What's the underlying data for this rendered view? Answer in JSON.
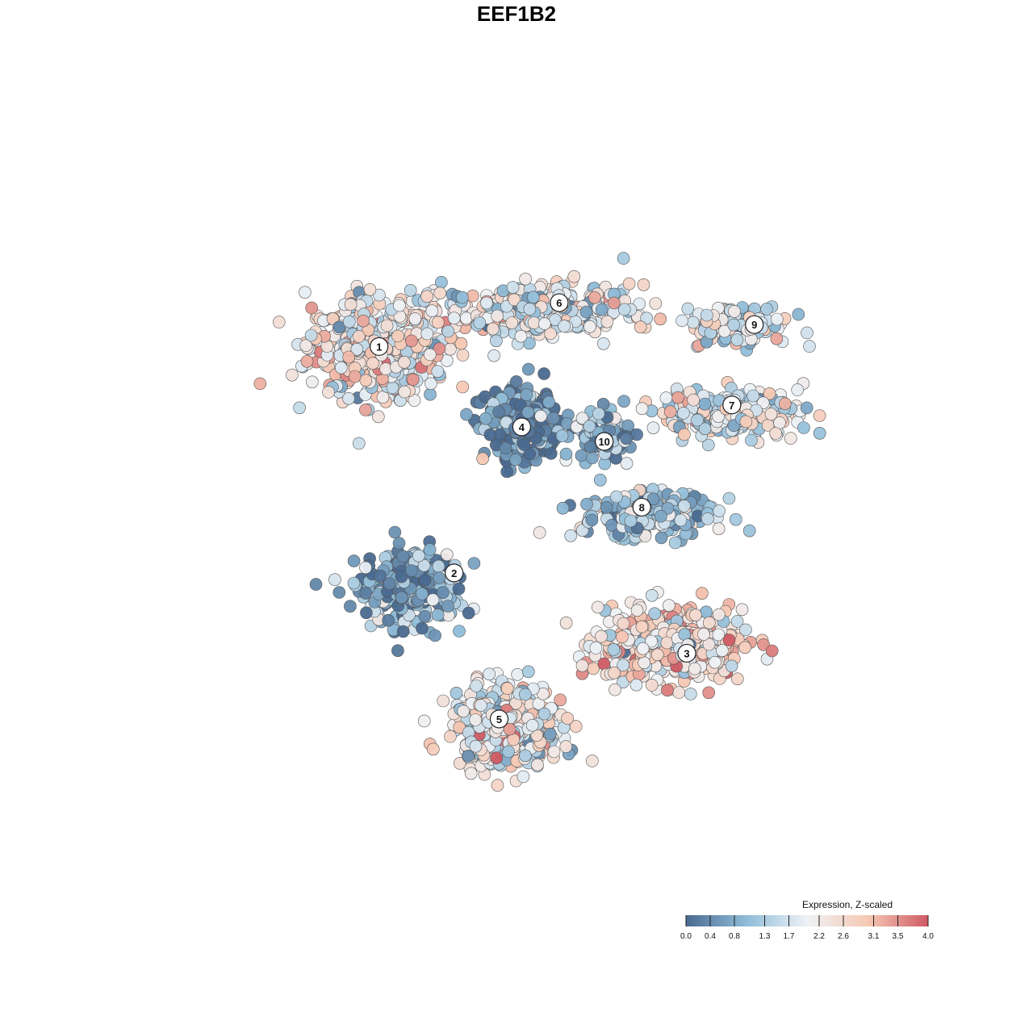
{
  "chart_data": {
    "type": "scatter",
    "title": "EEF1B2",
    "xlabel": "",
    "ylabel": "",
    "grid": false,
    "axes_visible": false,
    "colorbar": {
      "title": "Expression, Z-scaled",
      "range": [
        0,
        4
      ],
      "ticks": [
        0.0,
        0.4,
        0.8,
        1.3,
        1.7,
        2.2,
        2.6,
        3.1,
        3.5,
        4.0
      ],
      "tick_labels": [
        "0.0",
        "0.4",
        "0.8",
        "1.3",
        "1.7",
        "2.2",
        "2.6",
        "3.1",
        "3.5",
        "4.0"
      ],
      "colors": [
        "#4a6a90",
        "#8fbcd8",
        "#e6eef5",
        "#f6c9b4",
        "#cf5a64"
      ],
      "placement": "bottom-right"
    },
    "cluster_labels": [
      {
        "label": "1",
        "x": 0.29,
        "y": 0.73
      },
      {
        "label": "2",
        "x": 0.39,
        "y": 0.42
      },
      {
        "label": "3",
        "x": 0.7,
        "y": 0.31
      },
      {
        "label": "4",
        "x": 0.48,
        "y": 0.62
      },
      {
        "label": "5",
        "x": 0.45,
        "y": 0.22
      },
      {
        "label": "6",
        "x": 0.53,
        "y": 0.79
      },
      {
        "label": "7",
        "x": 0.76,
        "y": 0.65
      },
      {
        "label": "8",
        "x": 0.64,
        "y": 0.51
      },
      {
        "label": "9",
        "x": 0.79,
        "y": 0.76
      },
      {
        "label": "10",
        "x": 0.59,
        "y": 0.6
      }
    ],
    "clusters": [
      {
        "label": "1",
        "center": [
          0.29,
          0.73
        ],
        "spread": [
          0.085,
          0.06
        ],
        "n": 520,
        "mean_expression": 2.2
      },
      {
        "label": "2",
        "center": [
          0.33,
          0.4
        ],
        "spread": [
          0.06,
          0.05
        ],
        "n": 260,
        "mean_expression": 0.7
      },
      {
        "label": "3",
        "center": [
          0.68,
          0.32
        ],
        "spread": [
          0.085,
          0.045
        ],
        "n": 460,
        "mean_expression": 2.4
      },
      {
        "label": "4",
        "center": [
          0.48,
          0.62
        ],
        "spread": [
          0.045,
          0.04
        ],
        "n": 380,
        "mean_expression": 0.5
      },
      {
        "label": "5",
        "center": [
          0.46,
          0.21
        ],
        "spread": [
          0.065,
          0.05
        ],
        "n": 420,
        "mean_expression": 2.1
      },
      {
        "label": "6",
        "center": [
          0.5,
          0.78
        ],
        "spread": [
          0.11,
          0.03
        ],
        "n": 420,
        "mean_expression": 1.9
      },
      {
        "label": "7",
        "center": [
          0.76,
          0.64
        ],
        "spread": [
          0.09,
          0.03
        ],
        "n": 200,
        "mean_expression": 1.9
      },
      {
        "label": "8",
        "center": [
          0.65,
          0.5
        ],
        "spread": [
          0.08,
          0.03
        ],
        "n": 240,
        "mean_expression": 1.3
      },
      {
        "label": "9",
        "center": [
          0.77,
          0.76
        ],
        "spread": [
          0.06,
          0.025
        ],
        "n": 130,
        "mean_expression": 1.8
      },
      {
        "label": "10",
        "center": [
          0.59,
          0.61
        ],
        "spread": [
          0.03,
          0.03
        ],
        "n": 110,
        "mean_expression": 0.8
      }
    ]
  }
}
